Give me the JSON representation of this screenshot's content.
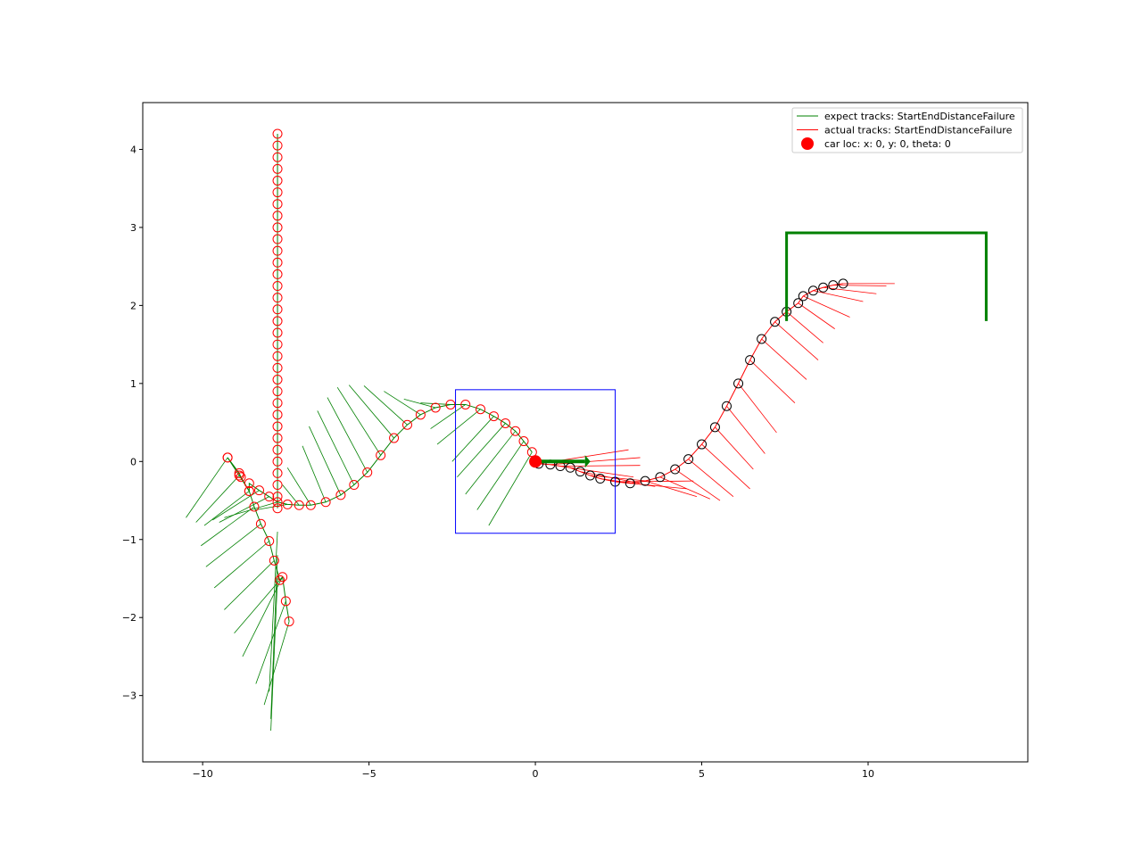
{
  "chart_data": {
    "type": "scatter",
    "title": "",
    "xlabel": "",
    "ylabel": "",
    "xlim": [
      -11.8,
      14.8
    ],
    "ylim": [
      -3.85,
      4.6
    ],
    "x_ticks": [
      -10,
      -5,
      0,
      5,
      10
    ],
    "x_tick_labels": [
      "−10",
      "−5",
      "0",
      "5",
      "10"
    ],
    "y_ticks": [
      -3,
      -2,
      -1,
      0,
      1,
      2,
      3,
      4
    ],
    "y_tick_labels": [
      "−3",
      "−2",
      "−1",
      "0",
      "1",
      "2",
      "3",
      "4"
    ],
    "grid": false,
    "legend_position": "upper-right",
    "legend": [
      {
        "label": "expect tracks: StartEndDistanceFailure",
        "marker": "line",
        "color": "#008000"
      },
      {
        "label": "actual tracks: StartEndDistanceFailure",
        "marker": "line",
        "color": "#ff0000"
      },
      {
        "label": "car loc: x: 0, y: 0, theta: 0",
        "marker": "dot",
        "color": "#ff0000"
      }
    ],
    "colors": {
      "expect": "#008000",
      "actual": "#ff0000",
      "actual_marker_edge": "#000000",
      "box": "#0000ff",
      "car": "#ff0000",
      "arrow": "#008000",
      "boundary": "#008000"
    },
    "vertical_track": {
      "x": -7.75,
      "y": [
        4.2,
        4.05,
        3.9,
        3.75,
        3.6,
        3.45,
        3.3,
        3.15,
        3.0,
        2.85,
        2.7,
        2.55,
        2.4,
        2.25,
        2.1,
        1.95,
        1.8,
        1.65,
        1.5,
        1.35,
        1.2,
        1.05,
        0.9,
        0.75,
        0.6,
        0.45,
        0.3,
        0.15,
        0.0,
        -0.15,
        -0.3,
        -0.45,
        -0.6
      ]
    },
    "expect_track": [
      [
        -9.25,
        0.05
      ],
      [
        -8.9,
        -0.15
      ],
      [
        -8.85,
        -0.2
      ],
      [
        -8.6,
        -0.38
      ],
      [
        -8.6,
        -0.28
      ],
      [
        -8.3,
        -0.37
      ],
      [
        -8.0,
        -0.45
      ],
      [
        -7.75,
        -0.52
      ],
      [
        -7.45,
        -0.55
      ],
      [
        -7.1,
        -0.56
      ],
      [
        -6.75,
        -0.56
      ],
      [
        -6.3,
        -0.52
      ],
      [
        -5.85,
        -0.43
      ],
      [
        -5.45,
        -0.3
      ],
      [
        -5.05,
        -0.14
      ],
      [
        -4.65,
        0.08
      ],
      [
        -4.25,
        0.3
      ],
      [
        -3.85,
        0.47
      ],
      [
        -3.45,
        0.6
      ],
      [
        -3.0,
        0.69
      ],
      [
        -2.55,
        0.73
      ],
      [
        -2.1,
        0.73
      ],
      [
        -1.65,
        0.67
      ],
      [
        -1.25,
        0.58
      ],
      [
        -0.9,
        0.49
      ],
      [
        -0.6,
        0.39
      ],
      [
        -0.35,
        0.26
      ],
      [
        -0.1,
        0.12
      ]
    ],
    "expect_tail": [
      [
        -9.25,
        0.05
      ],
      [
        -8.9,
        -0.18
      ],
      [
        -8.6,
        -0.38
      ],
      [
        -8.45,
        -0.58
      ],
      [
        -8.25,
        -0.8
      ],
      [
        -8.0,
        -1.02
      ],
      [
        -7.85,
        -1.27
      ],
      [
        -7.68,
        -1.52
      ],
      [
        -7.6,
        -1.48
      ],
      [
        -7.5,
        -1.79
      ],
      [
        -7.4,
        -2.05
      ]
    ],
    "expect_headings": [
      [
        -9.25,
        0.05,
        -10.5,
        -0.72
      ],
      [
        -8.9,
        -0.18,
        -10.2,
        -0.78
      ],
      [
        -8.6,
        -0.38,
        -9.95,
        -0.82
      ],
      [
        -8.45,
        -0.58,
        -10.05,
        -1.08
      ],
      [
        -8.25,
        -0.8,
        -9.9,
        -1.35
      ],
      [
        -8.0,
        -1.02,
        -9.65,
        -1.62
      ],
      [
        -7.85,
        -1.27,
        -9.35,
        -1.9
      ],
      [
        -7.68,
        -1.52,
        -9.05,
        -2.2
      ],
      [
        -7.6,
        -1.48,
        -8.8,
        -2.5
      ],
      [
        -7.5,
        -1.79,
        -8.4,
        -2.85
      ],
      [
        -7.4,
        -2.05,
        -8.15,
        -3.12
      ],
      [
        -7.75,
        -0.9,
        -8.0,
        -2.95
      ],
      [
        -7.75,
        -1.2,
        -7.95,
        -3.3
      ],
      [
        -7.75,
        -1.5,
        -7.95,
        -3.45
      ],
      [
        -8.3,
        -0.37,
        -9.7,
        -0.75
      ],
      [
        -8.0,
        -0.45,
        -9.5,
        -0.78
      ],
      [
        -7.75,
        -0.52,
        -9.35,
        -0.72
      ],
      [
        -7.45,
        -0.55,
        -8.4,
        -0.62
      ],
      [
        -7.1,
        -0.56,
        -7.6,
        -0.3
      ],
      [
        -6.75,
        -0.56,
        -7.45,
        -0.08
      ],
      [
        -6.3,
        -0.52,
        -7.0,
        0.2
      ],
      [
        -5.85,
        -0.43,
        -6.8,
        0.45
      ],
      [
        -5.45,
        -0.3,
        -6.55,
        0.65
      ],
      [
        -5.05,
        -0.14,
        -6.25,
        0.82
      ],
      [
        -4.65,
        0.08,
        -5.95,
        0.95
      ],
      [
        -4.25,
        0.3,
        -5.6,
        0.98
      ],
      [
        -3.85,
        0.47,
        -5.15,
        0.97
      ],
      [
        -3.45,
        0.6,
        -4.55,
        0.9
      ],
      [
        -3.0,
        0.69,
        -3.95,
        0.8
      ],
      [
        -2.55,
        0.73,
        -3.45,
        0.75
      ],
      [
        -2.1,
        0.73,
        -3.15,
        0.42
      ],
      [
        -1.65,
        0.67,
        -2.95,
        0.22
      ],
      [
        -1.25,
        0.58,
        -2.5,
        0.0
      ],
      [
        -0.9,
        0.49,
        -2.35,
        -0.2
      ],
      [
        -0.6,
        0.39,
        -2.1,
        -0.42
      ],
      [
        -0.35,
        0.26,
        -1.75,
        -0.62
      ],
      [
        -0.1,
        0.12,
        -1.4,
        -0.82
      ]
    ],
    "actual_track": [
      [
        0.1,
        -0.03
      ],
      [
        0.45,
        -0.04
      ],
      [
        0.75,
        -0.06
      ],
      [
        1.05,
        -0.08
      ],
      [
        1.35,
        -0.13
      ],
      [
        1.65,
        -0.18
      ],
      [
        1.95,
        -0.22
      ],
      [
        2.4,
        -0.26
      ],
      [
        2.85,
        -0.28
      ],
      [
        3.3,
        -0.25
      ],
      [
        3.75,
        -0.2
      ],
      [
        4.2,
        -0.1
      ],
      [
        4.6,
        0.03
      ],
      [
        5.0,
        0.22
      ],
      [
        5.4,
        0.44
      ],
      [
        5.75,
        0.71
      ],
      [
        6.1,
        1.0
      ],
      [
        6.45,
        1.3
      ],
      [
        6.8,
        1.57
      ],
      [
        7.2,
        1.79
      ],
      [
        7.55,
        1.92
      ],
      [
        7.9,
        2.03
      ],
      [
        8.05,
        2.12
      ],
      [
        8.35,
        2.19
      ],
      [
        8.65,
        2.23
      ],
      [
        8.95,
        2.26
      ],
      [
        9.25,
        2.28
      ]
    ],
    "actual_headings": [
      [
        0.1,
        -0.03,
        2.8,
        0.15
      ],
      [
        0.45,
        -0.04,
        3.15,
        0.05
      ],
      [
        0.75,
        -0.06,
        3.15,
        -0.05
      ],
      [
        1.05,
        -0.08,
        2.95,
        -0.2
      ],
      [
        1.35,
        -0.13,
        3.15,
        -0.28
      ],
      [
        1.65,
        -0.18,
        3.35,
        -0.25
      ],
      [
        1.95,
        -0.22,
        3.6,
        -0.32
      ],
      [
        2.4,
        -0.26,
        4.75,
        -0.25
      ],
      [
        2.85,
        -0.28,
        4.55,
        -0.35
      ],
      [
        3.3,
        -0.25,
        4.85,
        -0.45
      ],
      [
        3.75,
        -0.2,
        5.25,
        -0.48
      ],
      [
        4.2,
        -0.1,
        5.55,
        -0.5
      ],
      [
        4.6,
        0.03,
        5.95,
        -0.45
      ],
      [
        5.0,
        0.22,
        6.45,
        -0.35
      ],
      [
        5.4,
        0.44,
        6.55,
        -0.1
      ],
      [
        5.75,
        0.71,
        6.9,
        0.1
      ],
      [
        6.1,
        1.0,
        7.25,
        0.37
      ],
      [
        6.45,
        1.3,
        7.8,
        0.75
      ],
      [
        6.8,
        1.57,
        8.15,
        1.05
      ],
      [
        7.2,
        1.79,
        8.5,
        1.3
      ],
      [
        7.55,
        1.92,
        8.65,
        1.52
      ],
      [
        7.9,
        2.03,
        9.0,
        1.7
      ],
      [
        8.05,
        2.12,
        9.45,
        1.85
      ],
      [
        8.35,
        2.19,
        9.85,
        2.05
      ],
      [
        8.65,
        2.23,
        10.25,
        2.15
      ],
      [
        8.95,
        2.26,
        10.55,
        2.25
      ],
      [
        9.25,
        2.28,
        10.8,
        2.28
      ]
    ],
    "car_location": {
      "x": 0,
      "y": 0,
      "theta": 0
    },
    "heading_arrow": {
      "x0": 0,
      "y0": 0,
      "x1": 1.6,
      "y1": 0
    },
    "view_box": {
      "x0": -2.4,
      "x1": 2.4,
      "y0": -0.92,
      "y1": 0.92
    },
    "target_boundary": [
      [
        7.55,
        1.8
      ],
      [
        7.55,
        2.93
      ],
      [
        13.55,
        2.93
      ],
      [
        13.55,
        1.8
      ]
    ]
  }
}
